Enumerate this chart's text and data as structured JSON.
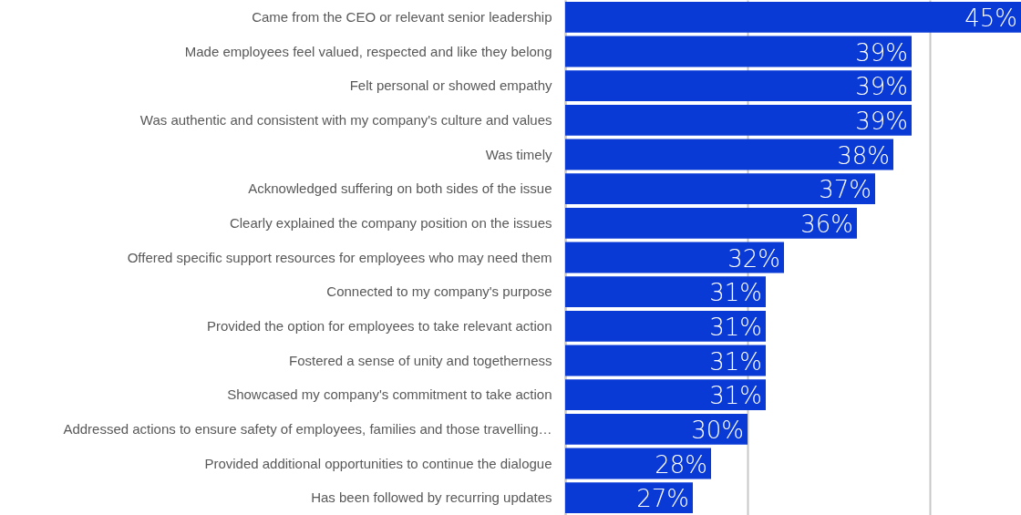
{
  "chart_data": {
    "type": "bar",
    "orientation": "horizontal",
    "categories": [
      "Came from the CEO or relevant senior leadership",
      "Made employees feel valued, respected and like they belong",
      "Felt personal or showed empathy",
      "Was authentic and consistent with my company's culture and values",
      "Was timely",
      "Acknowledged suffering on both sides of the issue",
      "Clearly explained the company position on the issues",
      "Offered specific support resources for employees who may need them",
      "Connected to my company's purpose",
      "Provided the option for employees to take relevant action",
      "Fostered a sense of unity and togetherness",
      "Showcased my company's commitment to take action",
      "Addressed actions to ensure safety of employees, families and those travelling…",
      "Provided additional opportunities to continue the dialogue",
      "Has been followed by recurring updates"
    ],
    "values": [
      45,
      39,
      39,
      39,
      38,
      37,
      36,
      32,
      31,
      31,
      31,
      31,
      30,
      28,
      27
    ],
    "value_labels": [
      "45%",
      "39%",
      "39%",
      "39%",
      "38%",
      "37%",
      "36%",
      "32%",
      "31%",
      "31%",
      "31%",
      "31%",
      "30%",
      "28%",
      "27%"
    ],
    "color": "#0a3ad6",
    "xlim": [
      20,
      45
    ],
    "xticks": [
      {
        "value": 20,
        "label": null
      },
      {
        "value": 30,
        "label": null
      },
      {
        "value": 40,
        "label": null
      }
    ],
    "grid": "x",
    "tick_labels": "y"
  }
}
